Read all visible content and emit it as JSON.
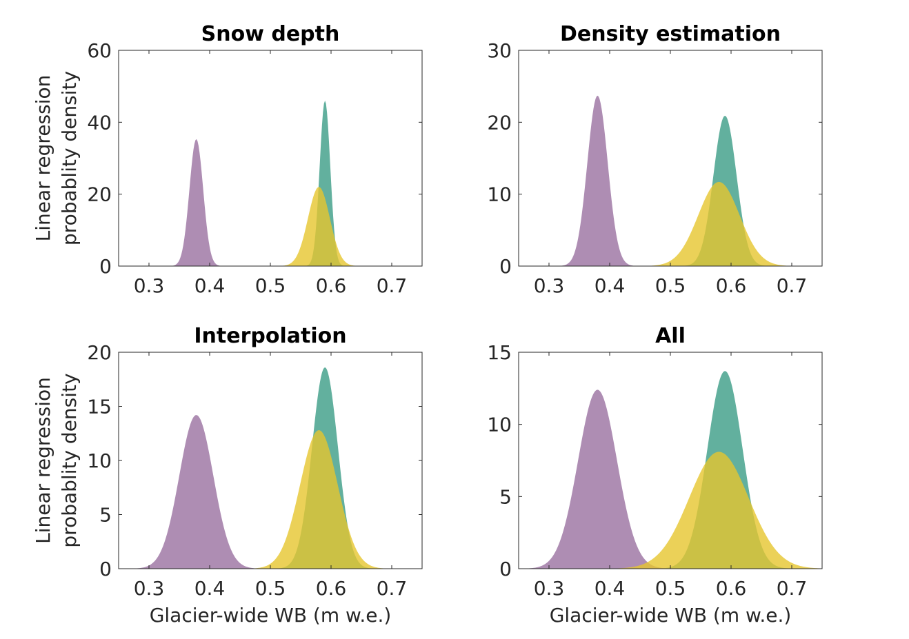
{
  "colors": {
    "series_a": "#3b9c86",
    "series_b": "#9a70a0",
    "series_c": "#e6c52e",
    "axis": "#262626"
  },
  "chart_data": [
    {
      "type": "area",
      "title": "Snow depth",
      "xlabel": "",
      "ylabel": [
        "Linear regression",
        "probablity density"
      ],
      "xlim": [
        0.25,
        0.75
      ],
      "ylim": [
        0,
        60
      ],
      "xticks": [
        0.3,
        0.4,
        0.5,
        0.6,
        0.7
      ],
      "xtick_labels": [
        "0.3",
        "0.4",
        "0.5",
        "0.6",
        "0.7"
      ],
      "yticks": [
        0,
        20,
        40,
        60
      ],
      "ytick_labels": [
        "0",
        "20",
        "40",
        "60"
      ],
      "series": [
        {
          "mean": 0.59,
          "sd": 0.0087,
          "peak": 46,
          "color": "#3b9c86"
        },
        {
          "mean": 0.378,
          "sd": 0.0113,
          "peak": 35.3,
          "color": "#9a70a0"
        },
        {
          "mean": 0.58,
          "sd": 0.018,
          "peak": 22,
          "color": "#e6c52e"
        }
      ]
    },
    {
      "type": "area",
      "title": "Density estimation",
      "xlabel": "",
      "ylabel": [],
      "xlim": [
        0.25,
        0.75
      ],
      "ylim": [
        0,
        30
      ],
      "xticks": [
        0.3,
        0.4,
        0.5,
        0.6,
        0.7
      ],
      "xtick_labels": [
        "0.3",
        "0.4",
        "0.5",
        "0.6",
        "0.7"
      ],
      "yticks": [
        0,
        10,
        20,
        30
      ],
      "ytick_labels": [
        "0",
        "10",
        "20",
        "30"
      ],
      "series": [
        {
          "mean": 0.59,
          "sd": 0.019,
          "peak": 20.9,
          "color": "#3b9c86"
        },
        {
          "mean": 0.38,
          "sd": 0.0168,
          "peak": 23.7,
          "color": "#9a70a0"
        },
        {
          "mean": 0.58,
          "sd": 0.034,
          "peak": 11.7,
          "color": "#e6c52e"
        }
      ]
    },
    {
      "type": "area",
      "title": "Interpolation",
      "xlabel": "Glacier-wide WB (m w.e.)",
      "ylabel": [
        "Linear regression",
        "probablity density"
      ],
      "xlim": [
        0.25,
        0.75
      ],
      "ylim": [
        0,
        20
      ],
      "xticks": [
        0.3,
        0.4,
        0.5,
        0.6,
        0.7
      ],
      "xtick_labels": [
        "0.3",
        "0.4",
        "0.5",
        "0.6",
        "0.7"
      ],
      "yticks": [
        0,
        5,
        10,
        15,
        20
      ],
      "ytick_labels": [
        "0",
        "5",
        "10",
        "15",
        "20"
      ],
      "series": [
        {
          "mean": 0.59,
          "sd": 0.0213,
          "peak": 18.6,
          "color": "#3b9c86"
        },
        {
          "mean": 0.378,
          "sd": 0.028,
          "peak": 14.2,
          "color": "#9a70a0"
        },
        {
          "mean": 0.58,
          "sd": 0.031,
          "peak": 12.8,
          "color": "#e6c52e"
        }
      ]
    },
    {
      "type": "area",
      "title": "All",
      "xlabel": "Glacier-wide WB (m w.e.)",
      "ylabel": [],
      "xlim": [
        0.25,
        0.75
      ],
      "ylim": [
        0,
        15
      ],
      "xticks": [
        0.3,
        0.4,
        0.5,
        0.6,
        0.7
      ],
      "xtick_labels": [
        "0.3",
        "0.4",
        "0.5",
        "0.6",
        "0.7"
      ],
      "yticks": [
        0,
        5,
        10,
        15
      ],
      "ytick_labels": [
        "0",
        "5",
        "10",
        "15"
      ],
      "series": [
        {
          "mean": 0.59,
          "sd": 0.029,
          "peak": 13.7,
          "color": "#3b9c86"
        },
        {
          "mean": 0.38,
          "sd": 0.032,
          "peak": 12.4,
          "color": "#9a70a0"
        },
        {
          "mean": 0.58,
          "sd": 0.049,
          "peak": 8.1,
          "color": "#e6c52e"
        }
      ]
    }
  ]
}
